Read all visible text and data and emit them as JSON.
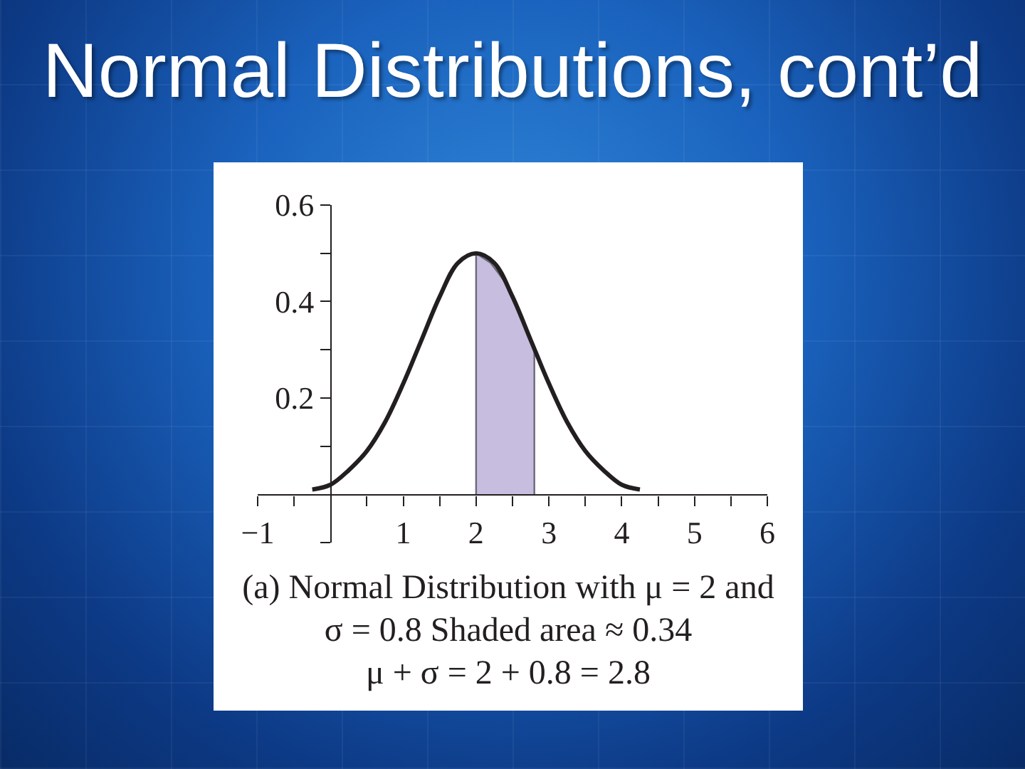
{
  "chart_data": {
    "type": "line",
    "title": "Normal Distributions, cont’d",
    "annotations": [
      "(a) Normal Distribution with μ = 2 and",
      "σ = 0.8 Shaded area ≈ 0.34",
      "μ + σ = 2 + 0.8 = 2.8"
    ],
    "series": [
      {
        "type": "area",
        "color": "#c6bddf",
        "x": [
          2,
          2,
          2.2,
          2.4,
          2.6,
          2.8,
          2.8
        ],
        "values": [
          0,
          0.5,
          0.48,
          0.44,
          0.38,
          0.3,
          0
        ]
      },
      {
        "color": "#231f20",
        "x": [
          -0.25,
          0,
          0.25,
          0.5,
          0.75,
          1,
          1.25,
          1.5,
          1.75,
          2,
          2.25,
          2.5,
          2.75,
          3,
          3.25,
          3.5,
          3.75,
          4,
          4.25
        ],
        "values": [
          0.01,
          0.02,
          0.05,
          0.09,
          0.15,
          0.23,
          0.32,
          0.41,
          0.48,
          0.5,
          0.48,
          0.41,
          0.32,
          0.23,
          0.15,
          0.09,
          0.05,
          0.02,
          0.01
        ]
      }
    ],
    "xlim": [
      -1,
      6
    ],
    "xticks": [
      {
        "value": -1,
        "label": "−1"
      },
      {
        "value": -0.5,
        "label": null
      },
      {
        "value": 0.5,
        "label": null
      },
      1,
      {
        "value": 1.5,
        "label": null
      },
      2,
      {
        "value": 2.5,
        "label": null
      },
      3,
      {
        "value": 3.5,
        "label": null
      },
      4,
      {
        "value": 4.5,
        "label": null
      },
      5,
      {
        "value": 5.5,
        "label": null
      },
      6
    ],
    "ylim": [
      -0.1,
      0.6
    ],
    "yticks": [
      {
        "value": -0.1,
        "label": null
      },
      {
        "value": 0.1,
        "label": null
      },
      0.2,
      {
        "value": 0.3,
        "label": null
      },
      0.4,
      {
        "value": 0.5,
        "label": null
      },
      0.6
    ],
    "grid": false,
    "marker": "none",
    "line_style": "solid"
  }
}
